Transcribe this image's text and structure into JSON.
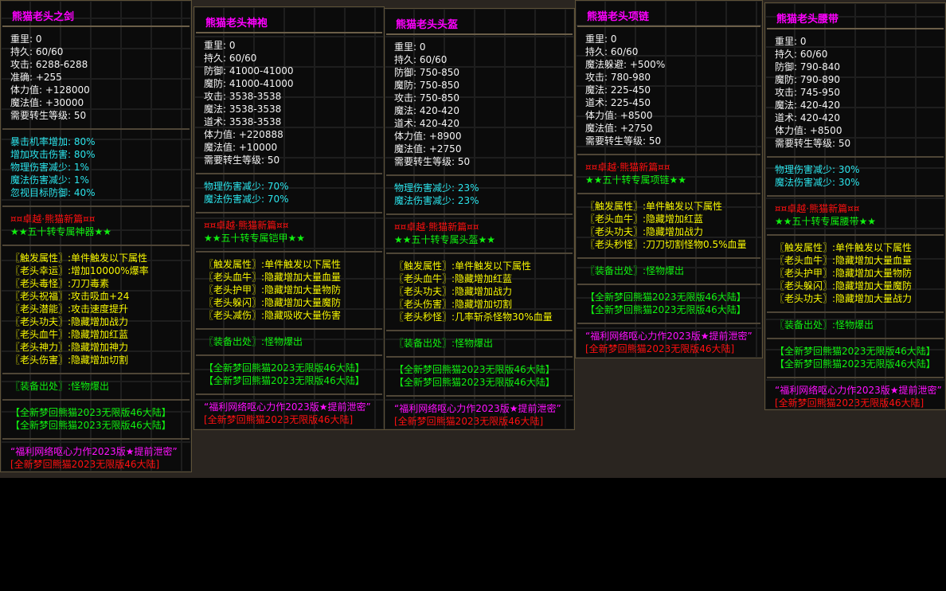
{
  "panels": [
    {
      "title": "熊猫老头之剑",
      "sections": [
        {
          "color": "white",
          "lines": [
            "重里: 0",
            "持久: 60/60",
            "攻击: 6288-6288",
            "准确: +255",
            "体力值: +128000",
            "魔法值: +30000",
            "需要转生等级: 50"
          ]
        },
        {
          "color": "cyan",
          "lines": [
            "暴击机率增加: 80%",
            "增加攻击伤害: 80%",
            "物理伤害减少: 1%",
            "魔法伤害减少: 1%",
            "忽视目标防御: 40%"
          ]
        },
        {
          "color": "mixed",
          "lines": [
            "¤¤卓越·熊猫新篇¤¤",
            "★★五十转专属神器★★"
          ]
        },
        {
          "color": "yellow",
          "lines": [
            "〖触发属性〗:单件触发以下属性",
            "〖老头幸运〗:增加10000%爆率",
            "〖老头毒怪〗:刀刀毒素",
            "〖老头祝福〗:攻击吸血+24",
            "〖老头潜能〗:攻击速度提升",
            "〖老头功夫〗:隐藏增加战力",
            "〖老头血牛〗:隐藏增加红蓝",
            "〖老头神力〗:隐藏增加神力",
            "〖老头伤害〗:隐藏增加切割"
          ]
        },
        {
          "color": "green",
          "lines": [
            "〖装备出处〗:怪物爆出"
          ]
        },
        {
          "color": "green",
          "lines": [
            "【全新梦回熊猫2023无限版46大陆】",
            "【全新梦回熊猫2023无限版46大陆】"
          ]
        },
        {
          "color": "footer",
          "lines": [
            "“福利网络呕心力作2023版★提前泄密”",
            "[全新梦回熊猫2023无限版46大陆]"
          ]
        }
      ]
    },
    {
      "title": "熊猫老头神袍",
      "sections": [
        {
          "color": "white",
          "lines": [
            "重里: 0",
            "持久: 60/60",
            "防御: 41000-41000",
            "魔防: 41000-41000",
            "攻击: 3538-3538",
            "魔法: 3538-3538",
            "道术: 3538-3538",
            "体力值: +220888",
            "魔法值: +10000",
            "需要转生等级: 50"
          ]
        },
        {
          "color": "cyan",
          "lines": [
            "物理伤害减少: 70%",
            "魔法伤害减少: 70%"
          ]
        },
        {
          "color": "mixed",
          "lines": [
            "¤¤卓越·熊猫新篇¤¤",
            "★★五十转专属铠甲★★"
          ]
        },
        {
          "color": "yellow",
          "lines": [
            "〖触发属性〗:单件触发以下属性",
            "〖老头血牛〗:隐藏增加大量血量",
            "〖老头护甲〗:隐藏增加大量物防",
            "〖老头躲闪〗:隐藏增加大量魔防",
            "〖老头减伤〗:隐藏吸收大量伤害"
          ]
        },
        {
          "color": "green",
          "lines": [
            "〖装备出处〗:怪物爆出"
          ]
        },
        {
          "color": "green",
          "lines": [
            "【全新梦回熊猫2023无限版46大陆】",
            "【全新梦回熊猫2023无限版46大陆】"
          ]
        },
        {
          "color": "footer",
          "lines": [
            "“福利网络呕心力作2023版★提前泄密”",
            "[全新梦回熊猫2023无限版46大陆]"
          ]
        }
      ]
    },
    {
      "title": "熊猫老头头盔",
      "sections": [
        {
          "color": "white",
          "lines": [
            "重里: 0",
            "持久: 60/60",
            "防御: 750-850",
            "魔防: 750-850",
            "攻击: 750-850",
            "魔法: 420-420",
            "道术: 420-420",
            "体力值: +8900",
            "魔法值: +2750",
            "需要转生等级: 50"
          ]
        },
        {
          "color": "cyan",
          "lines": [
            "物理伤害减少: 23%",
            "魔法伤害减少: 23%"
          ]
        },
        {
          "color": "mixed",
          "lines": [
            "¤¤卓越·熊猫新篇¤¤",
            "★★五十转专属头盔★★"
          ]
        },
        {
          "color": "yellow",
          "lines": [
            "〖触发属性〗:单件触发以下属性",
            "〖老头血牛〗:隐藏增加红蓝",
            "〖老头功夫〗:隐藏增加战力",
            "〖老头伤害〗:隐藏增加切割",
            "〖老头秒怪〗:几率斩杀怪物30%血量"
          ]
        },
        {
          "color": "green",
          "lines": [
            "〖装备出处〗:怪物爆出"
          ]
        },
        {
          "color": "green",
          "lines": [
            "【全新梦回熊猫2023无限版46大陆】",
            "【全新梦回熊猫2023无限版46大陆】"
          ]
        },
        {
          "color": "footer",
          "lines": [
            "“福利网络呕心力作2023版★提前泄密”",
            "[全新梦回熊猫2023无限版46大陆]"
          ]
        }
      ]
    },
    {
      "title": "熊猫老头项链",
      "sections": [
        {
          "color": "white",
          "lines": [
            "重里: 0",
            "持久: 60/60",
            "魔法躲避: +500%",
            "攻击: 780-980",
            "魔法: 225-450",
            "道术: 225-450",
            "体力值: +8500",
            "魔法值: +2750",
            "需要转生等级: 50"
          ]
        },
        {
          "color": "mixed",
          "lines": [
            "¤¤卓越·熊猫新篇¤¤",
            "★★五十转专属项链★★"
          ]
        },
        {
          "color": "yellow",
          "lines": [
            "〖触发属性〗:单件触发以下属性",
            "〖老头血牛〗:隐藏增加红蓝",
            "〖老头功夫〗:隐藏增加战力",
            "〖老头秒怪〗:刀刀切割怪物0.5%血量"
          ]
        },
        {
          "color": "green",
          "lines": [
            "〖装备出处〗:怪物爆出"
          ]
        },
        {
          "color": "green",
          "lines": [
            "【全新梦回熊猫2023无限版46大陆】",
            "【全新梦回熊猫2023无限版46大陆】"
          ]
        },
        {
          "color": "footer",
          "lines": [
            "“福利网络呕心力作2023版★提前泄密”",
            "[全新梦回熊猫2023无限版46大陆]"
          ]
        }
      ]
    },
    {
      "title": "熊猫老头腰带",
      "sections": [
        {
          "color": "white",
          "lines": [
            "重里: 0",
            "持久: 60/60",
            "防御: 790-840",
            "魔防: 790-890",
            "攻击: 745-950",
            "魔法: 420-420",
            "道术: 420-420",
            "体力值: +8500",
            "需要转生等级: 50"
          ]
        },
        {
          "color": "cyan",
          "lines": [
            "物理伤害减少: 30%",
            "魔法伤害减少: 30%"
          ]
        },
        {
          "color": "mixed",
          "lines": [
            "¤¤卓越·熊猫新篇¤¤",
            "★★五十转专属腰带★★"
          ]
        },
        {
          "color": "yellow",
          "lines": [
            "〖触发属性〗:单件触发以下属性",
            "〖老头血牛〗:隐藏增加大量血量",
            "〖老头护甲〗:隐藏增加大量物防",
            "〖老头躲闪〗:隐藏增加大量魔防",
            "〖老头功夫〗:隐藏增加大量战力"
          ]
        },
        {
          "color": "green",
          "lines": [
            "〖装备出处〗:怪物爆出"
          ]
        },
        {
          "color": "green",
          "lines": [
            "【全新梦回熊猫2023无限版46大陆】",
            "【全新梦回熊猫2023无限版46大陆】"
          ]
        },
        {
          "color": "footer",
          "lines": [
            "“福利网络呕心力作2023版★提前泄密”",
            "[全新梦回熊猫2023无限版46大陆]"
          ]
        }
      ]
    }
  ]
}
